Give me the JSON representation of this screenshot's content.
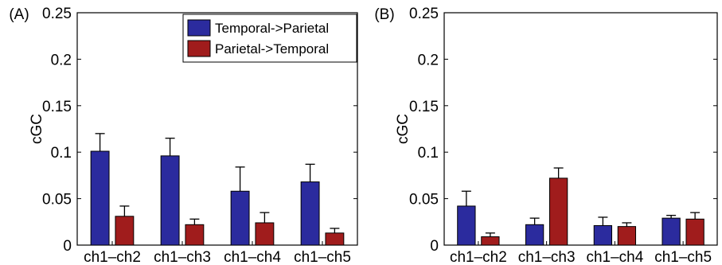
{
  "chart_data": [
    {
      "type": "bar",
      "panel_label": "(A)",
      "ylabel": "cGC",
      "xlabel": "",
      "ylim": [
        0,
        0.25
      ],
      "yticks": [
        0,
        0.05,
        0.1,
        0.15,
        0.2,
        0.25
      ],
      "ytick_labels": [
        "0",
        "0.05",
        "0.1",
        "0.15",
        "0.2",
        "0.25"
      ],
      "categories": [
        "ch1–ch2",
        "ch1–ch3",
        "ch1–ch4",
        "ch1–ch5"
      ],
      "series": [
        {
          "name": "Temporal->Parietal",
          "color": "#2b2b9e",
          "values": [
            0.101,
            0.096,
            0.058,
            0.068
          ],
          "errors": [
            0.019,
            0.019,
            0.026,
            0.019
          ]
        },
        {
          "name": "Parietal->Temporal",
          "color": "#a01c1c",
          "values": [
            0.031,
            0.022,
            0.024,
            0.013
          ],
          "errors": [
            0.011,
            0.006,
            0.011,
            0.005
          ]
        }
      ],
      "legend": {
        "position": "top-right",
        "entries": [
          "Temporal->Parietal",
          "Parietal->Temporal"
        ]
      },
      "grid": false
    },
    {
      "type": "bar",
      "panel_label": "(B)",
      "ylabel": "cGC",
      "xlabel": "",
      "ylim": [
        0,
        0.25
      ],
      "yticks": [
        0,
        0.05,
        0.1,
        0.15,
        0.2,
        0.25
      ],
      "ytick_labels": [
        "0",
        "0.05",
        "0.1",
        "0.15",
        "0.2",
        "0.25"
      ],
      "categories": [
        "ch1–ch2",
        "ch1–ch3",
        "ch1–ch4",
        "ch1–ch5"
      ],
      "series": [
        {
          "name": "Temporal->Parietal",
          "color": "#2b2b9e",
          "values": [
            0.042,
            0.022,
            0.021,
            0.029
          ],
          "errors": [
            0.016,
            0.007,
            0.009,
            0.003
          ]
        },
        {
          "name": "Parietal->Temporal",
          "color": "#a01c1c",
          "values": [
            0.009,
            0.072,
            0.02,
            0.028
          ],
          "errors": [
            0.004,
            0.011,
            0.004,
            0.007
          ]
        }
      ],
      "grid": false
    }
  ]
}
